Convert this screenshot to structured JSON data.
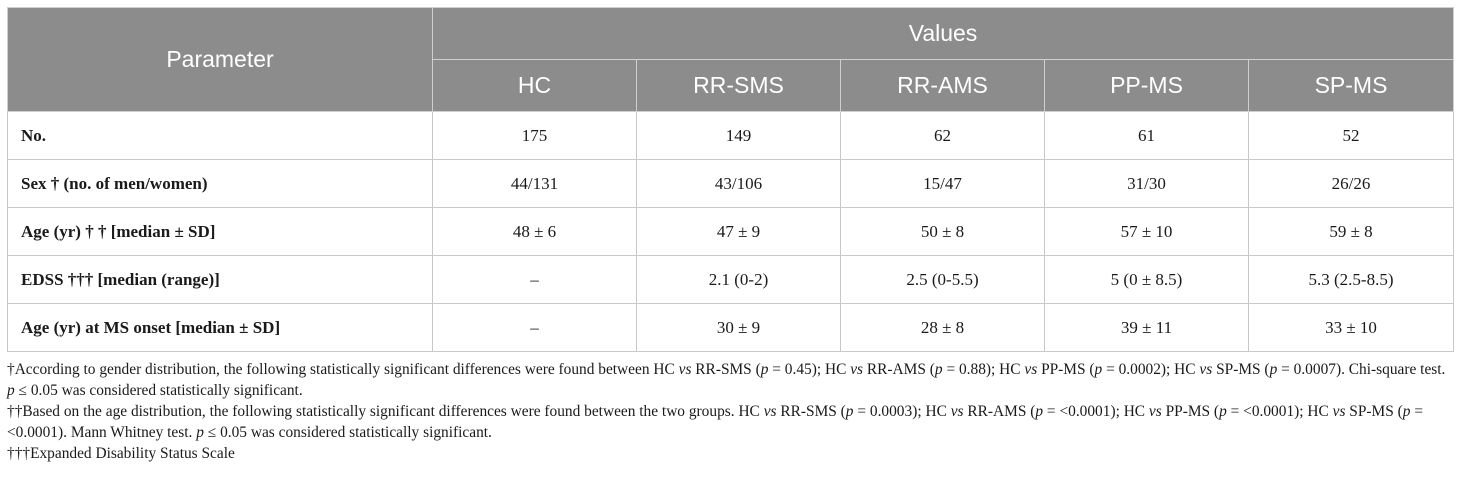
{
  "table": {
    "header": {
      "parameter": "Parameter",
      "values": "Values",
      "groups": [
        "HC",
        "RR-SMS",
        "RR-AMS",
        "PP-MS",
        "SP-MS"
      ]
    },
    "rows": [
      {
        "param_bold": "No.",
        "param_rest": "",
        "cells": [
          "175",
          "149",
          "62",
          "61",
          "52"
        ]
      },
      {
        "param_bold": "Sex † (no. of men/women)",
        "param_rest": "",
        "cells": [
          "44/131",
          "43/106",
          "15/47",
          "31/30",
          "26/26"
        ]
      },
      {
        "param_bold": "Age (yr) † † [median ± SD]",
        "param_rest": "",
        "cells": [
          "48 ± 6",
          "47 ± 9",
          "50 ± 8",
          "57 ± 10",
          "59 ± 8"
        ]
      },
      {
        "param_bold": "EDSS ††† [median (range)]",
        "param_rest": "",
        "cells": [
          "–",
          "2.1 (0-2)",
          "2.5 (0-5.5)",
          "5 (0 ± 8.5)",
          "5.3 (2.5-8.5)"
        ]
      },
      {
        "param_bold": "Age (yr) at MS onset [median ± SD]",
        "param_rest": "",
        "cells": [
          "–",
          "30 ± 9",
          "28 ± 8",
          "39 ± 11",
          "33 ± 10"
        ]
      }
    ]
  },
  "footnotes": {
    "note1": {
      "s1": "†According to gender distribution, the following statistically significant differences were found between HC ",
      "vs1": "vs",
      "s2": " RR-SMS (",
      "p1": "p",
      "s3": " = 0.45); HC ",
      "vs2": "vs",
      "s4": " RR-AMS (",
      "p2": "p",
      "s5": " = 0.88); HC ",
      "vs3": "vs",
      "s6": " PP-MS (",
      "p3": "p",
      "s7": " = 0.0002); HC ",
      "vs4": "vs",
      "s8": " SP-MS (",
      "p4": "p",
      "s9": " = 0.0007). Chi-square test. ",
      "p5": "p",
      "s10": " ≤ 0.05 was considered statistically significant."
    },
    "note2": {
      "s1": "††Based on the age distribution, the following statistically significant differences were found between the two groups. HC ",
      "vs1": "vs",
      "s2": " RR-SMS (",
      "p1": "p",
      "s3": " = 0.0003); HC ",
      "vs2": "vs",
      "s4": " RR-AMS (",
      "p2": "p",
      "s5": " = <0.0001); HC ",
      "vs3": "vs",
      "s6": " PP-MS (",
      "p3": "p",
      "s7": " = <0.0001); HC ",
      "vs4": "vs",
      "s8": " SP-MS (",
      "p4": "p",
      "s9": " = <0.0001). Mann Whitney test. ",
      "p5": "p",
      "s10": " ≤ 0.05 was considered statistically significant."
    },
    "note3": "†††Expanded Disability Status Scale"
  }
}
